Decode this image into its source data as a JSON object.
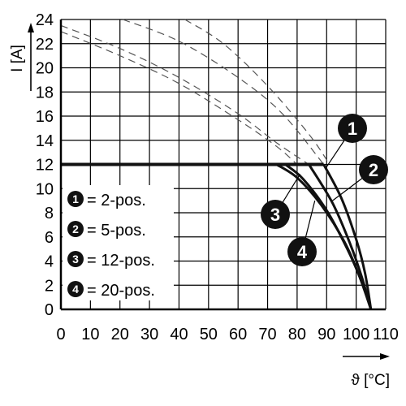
{
  "chart_data": {
    "type": "line",
    "xlabel": "ϑ [°C]",
    "ylabel": "I [A]",
    "xlim": [
      0,
      110
    ],
    "ylim": [
      0,
      24
    ],
    "x_ticks": [
      0,
      10,
      20,
      30,
      40,
      50,
      60,
      70,
      80,
      90,
      100,
      110
    ],
    "y_ticks": [
      0,
      2,
      4,
      6,
      8,
      10,
      12,
      14,
      16,
      18,
      20,
      22,
      24
    ],
    "x_tick_labels": [
      "0",
      "10",
      "20",
      "30",
      "40",
      "50",
      "60",
      "70",
      "80",
      "90",
      "100",
      "110"
    ],
    "y_tick_labels": [
      "0",
      "2",
      "4",
      "6",
      "8",
      "10",
      "12",
      "14",
      "16",
      "18",
      "20",
      "22",
      "24"
    ],
    "grid": true,
    "series": [
      {
        "name": "2-pos.",
        "label": "1",
        "points": [
          [
            0,
            12
          ],
          [
            89,
            12
          ],
          [
            95,
            9.2
          ],
          [
            100,
            5.8
          ],
          [
            103,
            3.0
          ],
          [
            105,
            0
          ]
        ]
      },
      {
        "name": "5-pos.",
        "label": "2",
        "points": [
          [
            0,
            12
          ],
          [
            84,
            12
          ],
          [
            92,
            8.8
          ],
          [
            98,
            5.4
          ],
          [
            102,
            2.6
          ],
          [
            105,
            0
          ]
        ]
      },
      {
        "name": "12-pos.",
        "label": "3",
        "points": [
          [
            0,
            12
          ],
          [
            76,
            12
          ],
          [
            82,
            10.8
          ],
          [
            90,
            8.2
          ],
          [
            97,
            5.0
          ],
          [
            102,
            2.2
          ],
          [
            105,
            0
          ]
        ]
      },
      {
        "name": "20-pos.",
        "label": "4",
        "points": [
          [
            0,
            12
          ],
          [
            73,
            12
          ],
          [
            80,
            10.9
          ],
          [
            88,
            8.7
          ],
          [
            96,
            5.6
          ],
          [
            101,
            2.8
          ],
          [
            105,
            0
          ]
        ]
      }
    ],
    "derating_curves_dashed": [
      {
        "points": [
          [
            21,
            24
          ],
          [
            40,
            22.2
          ],
          [
            60,
            19.2
          ],
          [
            75,
            16.2
          ],
          [
            89,
            12
          ]
        ]
      },
      {
        "points": [
          [
            42,
            24
          ],
          [
            55,
            22
          ],
          [
            70,
            18.5
          ],
          [
            84,
            14.5
          ],
          [
            91,
            12
          ]
        ]
      },
      {
        "points": [
          [
            0,
            23.5
          ],
          [
            20,
            21.6
          ],
          [
            40,
            19.2
          ],
          [
            60,
            16.2
          ],
          [
            73,
            13.8
          ],
          [
            84,
            12
          ]
        ]
      },
      {
        "points": [
          [
            0,
            23.0
          ],
          [
            20,
            21.0
          ],
          [
            40,
            18.7
          ],
          [
            60,
            15.7
          ],
          [
            73,
            13.5
          ],
          [
            80,
            12
          ]
        ]
      }
    ],
    "legend": {
      "placement": "bottom-left",
      "items": [
        {
          "badge": "1",
          "text": "= 2-pos."
        },
        {
          "badge": "2",
          "text": "= 5-pos."
        },
        {
          "badge": "3",
          "text": "= 12-pos."
        },
        {
          "badge": "4",
          "text": "= 20-pos."
        }
      ]
    },
    "callouts": [
      {
        "badge": "1",
        "anchor": [
          90,
          11.8
        ]
      },
      {
        "badge": "2",
        "anchor": [
          92,
          9.0
        ]
      },
      {
        "badge": "3",
        "anchor": [
          81,
          11.2
        ]
      },
      {
        "badge": "4",
        "anchor": [
          86,
          9.0
        ]
      }
    ],
    "colors": {
      "curve": "#111111",
      "grid": "#000000",
      "dashed": "#555555",
      "badge": "#111111",
      "badge_text": "#ffffff"
    }
  }
}
